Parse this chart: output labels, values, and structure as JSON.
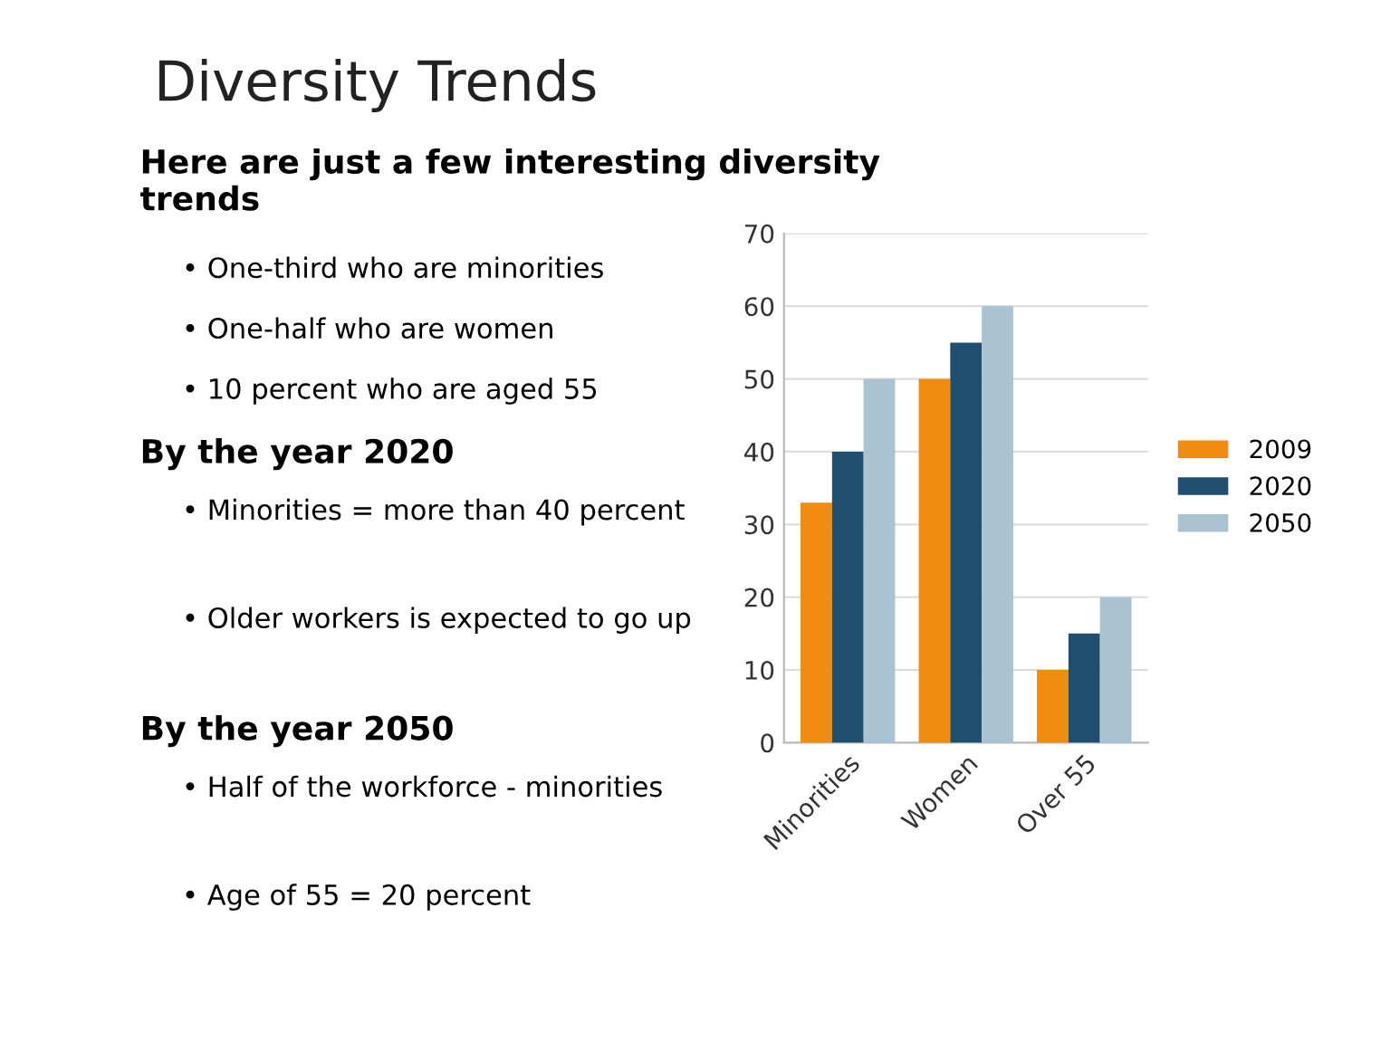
{
  "chart_data": {
    "type": "bar",
    "title": "Diversity Trends",
    "annotations": [
      "Here are just a few interesting diversity trends",
      "• One-third who are minorities",
      "• One-half who are women",
      "• 10 percent who are aged 55",
      "By the year 2020",
      "• Minorities = more than 40 percent",
      "• Older workers is expected to go up",
      "By the year 2050",
      "• Half of the workforce - minorities",
      "• Age of 55 = 20 percent"
    ],
    "categories": [
      "Minorities",
      "Women",
      "Over 55"
    ],
    "series": [
      {
        "name": "2009",
        "color": "#f08c10",
        "values": [
          33,
          50,
          10
        ]
      },
      {
        "name": "2020",
        "color": "#1f4e6e",
        "values": [
          40,
          55,
          15
        ]
      },
      {
        "name": "2050",
        "color": "#a9c3d3",
        "values": [
          50,
          60,
          20
        ]
      }
    ],
    "ylim": [
      0,
      70
    ],
    "yticks": [
      0,
      10,
      20,
      30,
      40,
      50,
      60,
      70
    ],
    "grid": "y",
    "legend": "right"
  }
}
